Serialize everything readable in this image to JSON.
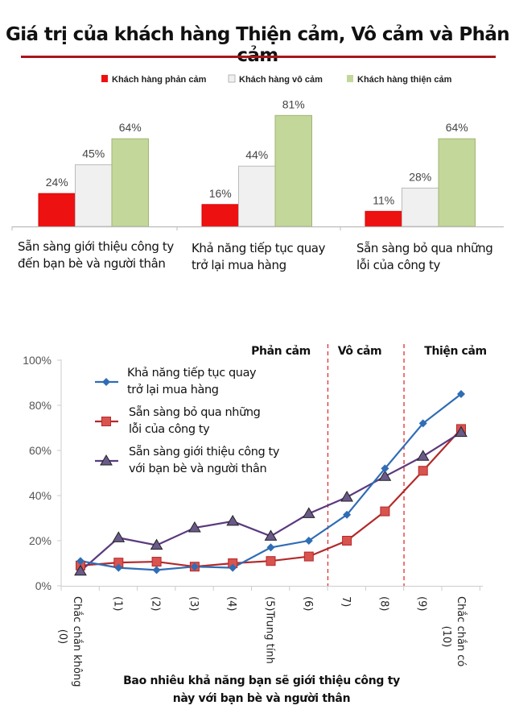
{
  "chart_data": [
    {
      "type": "bar",
      "title": "Giá trị của khách hàng Thiện cảm, Vô cảm và Phản cảm",
      "legend": [
        "Khách hàng phản cảm",
        "Khách hàng vô cảm",
        "Khách hàng thiện cảm"
      ],
      "legend_placement": "top",
      "colors": [
        "#ee1111",
        "#f0f0f0",
        "#c4d79b"
      ],
      "categories": [
        "Sẵn sàng giới thiệu công ty đến bạn bè và người thân",
        "Khả năng tiếp tục quay trở lại mua hàng",
        "Sẵn sàng bỏ qua những lỗi của công ty"
      ],
      "category_lines": [
        [
          "Sẵn sàng giới thiệu công ty",
          "đến bạn bè và người thân"
        ],
        [
          "Khả năng tiếp tục quay",
          "trở lại mua hàng"
        ],
        [
          "Sẵn sàng bỏ qua những",
          "lỗi của công ty"
        ]
      ],
      "series": [
        {
          "name": "Khách hàng phản cảm",
          "values": [
            24,
            16,
            11
          ]
        },
        {
          "name": "Khách hàng vô cảm",
          "values": [
            45,
            44,
            28
          ]
        },
        {
          "name": "Khách hàng thiện cảm",
          "values": [
            64,
            81,
            64
          ]
        }
      ],
      "value_suffix": "%",
      "ylim": [
        0,
        100
      ]
    },
    {
      "type": "line",
      "x": [
        0,
        1,
        2,
        3,
        4,
        5,
        6,
        7,
        8,
        9,
        10
      ],
      "x_tick_labels": [
        "Chắc chắn không (0)",
        "(1)",
        "(2)",
        "(3)",
        "(4)",
        "(5)Trung tính",
        "(6)",
        "7)",
        "(8)",
        "(9)",
        "Chắc chắn có (10)"
      ],
      "x_tick_lines": [
        [
          "Chắc chắn không",
          "(0)"
        ],
        [
          "(1)"
        ],
        [
          "(2)"
        ],
        [
          "(3)"
        ],
        [
          "(4)"
        ],
        [
          "(5)Trung tính"
        ],
        [
          "(6)"
        ],
        [
          "7)"
        ],
        [
          "(8)"
        ],
        [
          "(9)"
        ],
        [
          "Chắc chắn có",
          "(10)"
        ]
      ],
      "xlabel": [
        "Bao nhiêu khả năng bạn sẽ giới thiệu công ty",
        "này với bạn bè và người thân"
      ],
      "ylabel": "",
      "ylim": [
        0,
        100
      ],
      "y_ticks": [
        "0%",
        "20%",
        "40%",
        "60%",
        "80%",
        "100%"
      ],
      "regions": [
        {
          "label": "Phản cảm",
          "from": 0,
          "to": 6.5
        },
        {
          "label": "Vô cảm",
          "from": 6.5,
          "to": 8.5
        },
        {
          "label": "Thiện cảm",
          "from": 8.5,
          "to": 10
        }
      ],
      "region_divider_color": "#e03030",
      "legend_placement": "top-left",
      "series": [
        {
          "name": "Khả năng tiếp tục quay trở lại mua hàng",
          "lines": [
            "Khả năng tiếp tục quay",
            "trở lại mua hàng"
          ],
          "marker": "diamond",
          "color": "#2f6db5",
          "values": [
            11,
            8,
            7,
            8.5,
            8,
            17,
            20,
            31.5,
            52,
            72,
            85
          ]
        },
        {
          "name": "Sẵn sàng bỏ qua những lỗi của công ty",
          "lines": [
            "Sẵn sàng bỏ qua những",
            "lỗi của công ty"
          ],
          "marker": "square",
          "color": "#b22a2a",
          "marker_color": "#d9534f",
          "values": [
            9,
            10.3,
            10.7,
            8.5,
            10,
            11,
            13,
            20,
            33,
            51,
            69.5
          ]
        },
        {
          "name": "Sẵn sàng giới thiệu công ty với bạn bè và người thân",
          "lines": [
            "Sẵn sàng giới thiệu công ty",
            "với bạn bè và người thân"
          ],
          "marker": "triangle",
          "color": "#5b3a7e",
          "marker_color": "#6a5a8a",
          "values": [
            6.5,
            21.3,
            18,
            25.7,
            28.6,
            22,
            32,
            39.3,
            48.5,
            57.4,
            68
          ]
        }
      ]
    }
  ]
}
